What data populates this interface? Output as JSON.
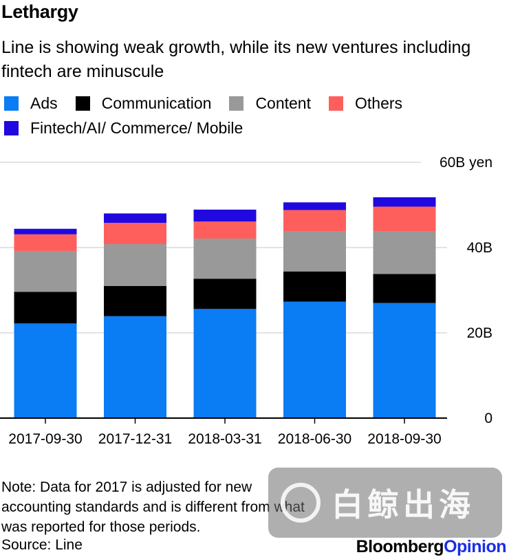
{
  "title": "Lethargy",
  "subtitle": "Line is showing weak growth, while its new ventures including fintech are minuscule",
  "chart_data": {
    "type": "bar",
    "stacked": true,
    "unit": "yen",
    "categories": [
      "2017-09-30",
      "2017-12-31",
      "2018-03-31",
      "2018-06-30",
      "2018-09-30"
    ],
    "series": [
      {
        "name": "Ads",
        "color": "#0a7cf4",
        "values": [
          22.2,
          23.9,
          25.6,
          27.3,
          27.0
        ]
      },
      {
        "name": "Communication",
        "color": "#000000",
        "values": [
          7.4,
          7.1,
          7.1,
          7.1,
          6.8
        ]
      },
      {
        "name": "Content",
        "color": "#999999",
        "values": [
          9.6,
          9.8,
          9.4,
          9.4,
          10.0
        ]
      },
      {
        "name": "Others",
        "color": "#ff5f5c",
        "values": [
          3.9,
          5.0,
          4.0,
          5.0,
          5.8
        ]
      },
      {
        "name": "Fintech/AI/ Commerce/ Mobile",
        "color": "#2008df",
        "values": [
          1.3,
          2.2,
          2.8,
          1.8,
          2.2
        ]
      }
    ],
    "y_ticks": [
      {
        "value": 0,
        "label": "0"
      },
      {
        "value": 20,
        "label": "20B"
      },
      {
        "value": 40,
        "label": "40B"
      },
      {
        "value": 60,
        "label": "60B yen"
      }
    ],
    "ylim": [
      0,
      60
    ],
    "xlabel": "",
    "ylabel": ""
  },
  "note": "Note: Data for 2017 is adjusted for new accounting standards and is different from what was reported for those periods.",
  "source": "Source: Line",
  "watermark_text": "白鲸出海",
  "brand": {
    "part1": "Bloomberg",
    "part2": "Opinion",
    "color2": "#1b2ee4"
  }
}
